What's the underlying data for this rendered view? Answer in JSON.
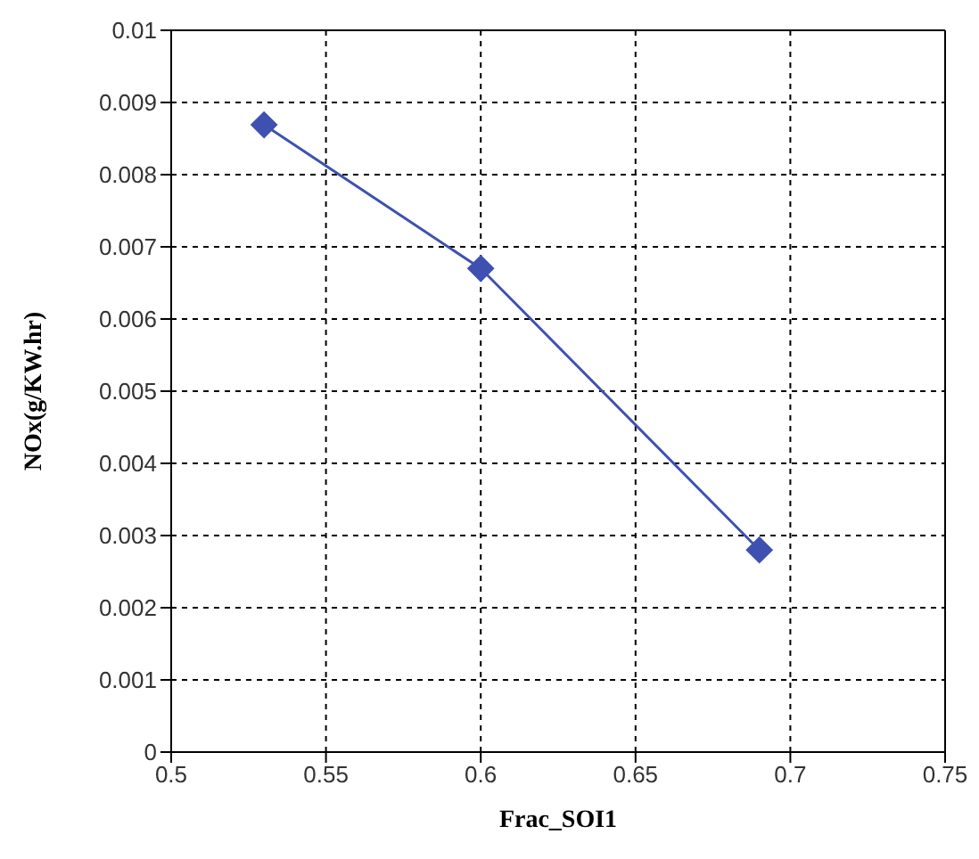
{
  "chart_data": {
    "type": "line",
    "xlabel": "Frac_SOI1",
    "ylabel": "NOx(g/KW.hr)",
    "x": [
      0.53,
      0.6,
      0.69
    ],
    "series": [
      {
        "color": "#3f51b0",
        "values": [
          0.00869,
          0.0067,
          0.0028
        ]
      }
    ],
    "xlim": [
      0.5,
      0.75
    ],
    "xticks": [
      0.5,
      0.55,
      0.6,
      0.65,
      0.7,
      0.75
    ],
    "ylim": [
      0,
      0.01
    ],
    "yticks": [
      0,
      0.001,
      0.002,
      0.003,
      0.004,
      0.005,
      0.006,
      0.007,
      0.008,
      0.009,
      0.01
    ],
    "grid": true,
    "marker": "diamond",
    "line_style": "solid"
  }
}
